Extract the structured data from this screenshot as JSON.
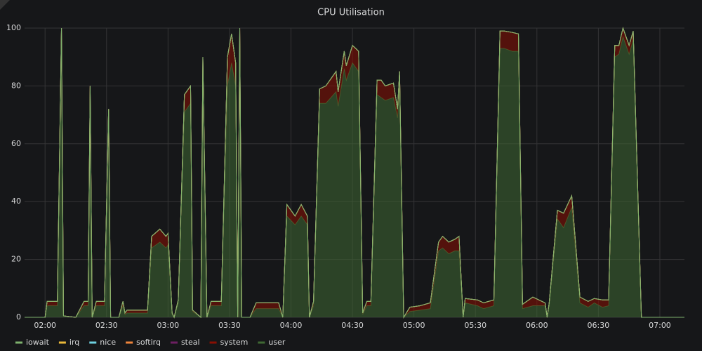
{
  "chart_data": {
    "type": "stacked-area",
    "title": "CPU Utilisation",
    "x": [
      "01:50",
      "02:00",
      "02:01",
      "02:06",
      "02:08",
      "02:09",
      "02:15",
      "02:19",
      "02:21",
      "02:22",
      "02:23",
      "02:25",
      "02:29",
      "02:31",
      "02:32",
      "02:36",
      "02:38",
      "02:39",
      "02:40",
      "02:50",
      "02:52",
      "02:56",
      "02:59",
      "03:00",
      "03:02",
      "03:03",
      "03:05",
      "03:08",
      "03:11",
      "03:12",
      "03:16",
      "03:17",
      "03:19",
      "03:21",
      "03:26",
      "03:29",
      "03:31",
      "03:33",
      "03:34",
      "03:35",
      "03:36",
      "03:40",
      "03:43",
      "03:54",
      "03:56",
      "03:58",
      "04:02",
      "04:05",
      "04:08",
      "04:09",
      "04:11",
      "04:14",
      "04:17",
      "04:22",
      "04:23",
      "04:26",
      "04:27",
      "04:30",
      "04:33",
      "04:35",
      "04:37",
      "04:39",
      "04:42",
      "04:44",
      "04:46",
      "04:50",
      "04:52",
      "04:53",
      "04:55",
      "04:58",
      "05:03",
      "05:08",
      "05:12",
      "05:14",
      "05:17",
      "05:20",
      "05:22",
      "05:24",
      "05:25",
      "05:31",
      "05:34",
      "05:39",
      "05:42",
      "05:44",
      "05:48",
      "05:51",
      "05:53",
      "05:58",
      "06:01",
      "06:04",
      "06:05",
      "06:06",
      "06:10",
      "06:13",
      "06:17",
      "06:21",
      "06:25",
      "06:28",
      "06:32",
      "06:35",
      "06:38",
      "06:40",
      "06:42",
      "06:45",
      "06:47",
      "06:51",
      "07:12"
    ],
    "xlim": [
      "01:50",
      "07:12"
    ],
    "xticks": [
      "02:00",
      "02:30",
      "03:00",
      "03:30",
      "04:00",
      "04:30",
      "05:00",
      "05:30",
      "06:00",
      "06:30",
      "07:00"
    ],
    "ylim": [
      0,
      100
    ],
    "yticks": [
      0,
      20,
      40,
      60,
      80,
      100
    ],
    "grid": true,
    "legend": "bottom-left",
    "series": [
      {
        "name": "iowait",
        "color": "#7eb26d",
        "values": [
          0,
          0,
          0,
          0,
          0,
          0,
          0,
          0,
          0,
          0,
          0,
          0,
          0,
          0,
          0,
          0,
          0,
          0,
          0,
          0,
          0,
          0,
          0,
          0,
          0,
          0,
          0,
          0,
          0,
          0,
          0,
          0,
          0,
          0,
          0,
          0,
          0,
          0,
          0,
          0,
          0,
          0,
          0,
          0,
          0,
          0,
          0,
          0,
          0,
          0,
          0,
          0,
          0,
          0,
          0,
          0,
          0,
          0,
          0,
          0,
          0,
          0,
          0,
          0,
          0,
          0,
          0,
          0,
          0,
          0,
          0,
          0,
          0,
          0,
          0,
          0,
          0,
          0,
          0,
          0,
          0,
          0,
          0,
          0,
          0,
          0,
          0,
          0,
          0,
          0,
          0,
          0,
          0,
          0,
          0,
          0,
          0,
          0,
          0,
          0,
          0,
          0,
          0,
          0,
          0,
          0,
          0
        ]
      },
      {
        "name": "irq",
        "color": "#eab839",
        "values": [
          0,
          0,
          0,
          0,
          0,
          0,
          0,
          0,
          0,
          0,
          0,
          0,
          0,
          0,
          0,
          0,
          0,
          0,
          0,
          0,
          0,
          0,
          0,
          0,
          0,
          0,
          0,
          0,
          0,
          0,
          0,
          0,
          0,
          0,
          0,
          0,
          0,
          0,
          0,
          0,
          0,
          0,
          0,
          0,
          0,
          0,
          0,
          0,
          0,
          0,
          0,
          0,
          0,
          0,
          0,
          0,
          0,
          0,
          0,
          0,
          0,
          0,
          0,
          0,
          0,
          0,
          0,
          0,
          0,
          0,
          0,
          0,
          0,
          0,
          0,
          0,
          0,
          0,
          0,
          0,
          0,
          0,
          0,
          0,
          0,
          0,
          0,
          0,
          0,
          0,
          0,
          0,
          0,
          0,
          0,
          0,
          0,
          0,
          0,
          0,
          0,
          0,
          0,
          0,
          0,
          0,
          0
        ]
      },
      {
        "name": "nice",
        "color": "#6ed0e0",
        "values": [
          0,
          0,
          0,
          0,
          0,
          0,
          0,
          0,
          0,
          0,
          0,
          0,
          0,
          0,
          0,
          0,
          0,
          0,
          0,
          0,
          0,
          0,
          0,
          0,
          0,
          0,
          0,
          0,
          0,
          0,
          0,
          0,
          0,
          0,
          0,
          0,
          0,
          0,
          0,
          0,
          0,
          0,
          0,
          0,
          0,
          0,
          0,
          0,
          0,
          0,
          0,
          0,
          0,
          0,
          0,
          0,
          0,
          0,
          0,
          0,
          0,
          0,
          0,
          0,
          0,
          0,
          0,
          0,
          0,
          0,
          0,
          0,
          0,
          0,
          0,
          0,
          0,
          0,
          0,
          0,
          0,
          0,
          0,
          0,
          0,
          0,
          0,
          0,
          0,
          0,
          0,
          0,
          0,
          0,
          0,
          0,
          0,
          0,
          0,
          0,
          0,
          0,
          0,
          0,
          0,
          0,
          0
        ]
      },
      {
        "name": "softirq",
        "color": "#ef843c",
        "values": [
          0,
          0,
          0,
          0,
          0,
          0,
          0,
          0,
          0,
          0,
          0,
          0,
          0,
          0,
          0,
          0,
          0,
          0,
          0,
          0,
          0,
          0,
          0,
          0,
          0,
          0,
          0,
          0,
          0,
          0,
          0,
          0,
          0,
          0,
          0,
          0,
          0,
          0,
          0,
          0,
          0,
          0,
          0,
          0,
          0,
          0,
          0,
          0,
          0,
          0,
          0,
          0,
          0,
          0,
          0,
          0,
          0,
          0,
          0,
          0,
          0,
          0,
          0,
          0,
          0,
          0,
          0,
          0,
          0,
          0,
          0,
          0,
          0,
          0,
          0,
          0,
          0,
          0,
          0,
          0,
          0,
          0,
          0,
          0,
          0,
          0,
          0,
          0,
          0,
          0,
          0,
          0,
          0,
          0,
          0,
          0,
          0,
          0,
          0,
          0,
          0,
          0,
          0,
          0,
          0,
          0,
          0
        ]
      },
      {
        "name": "steal",
        "color": "#6d1f62",
        "values": [
          0,
          0,
          0,
          0,
          0,
          0,
          0,
          0,
          0,
          0,
          0,
          0,
          0,
          0,
          0,
          0,
          0,
          0,
          0,
          0,
          0,
          0,
          0,
          0,
          0,
          0,
          0,
          0,
          0,
          0,
          0,
          0,
          0,
          0,
          0,
          0,
          0,
          0,
          0,
          0,
          0,
          0,
          0,
          0,
          0,
          0,
          0,
          0,
          0,
          0,
          0,
          0,
          0,
          0,
          0,
          0,
          0,
          0,
          0,
          0,
          0,
          0,
          0,
          0,
          0,
          0,
          0,
          0,
          0,
          0,
          0,
          0,
          0,
          0,
          0,
          0,
          0,
          0,
          0,
          0,
          0,
          0,
          0,
          0,
          0,
          0,
          0,
          0,
          0,
          0,
          0,
          0,
          0,
          0,
          0,
          0,
          0,
          0,
          0,
          0,
          0,
          0,
          0,
          0,
          0,
          0,
          0
        ]
      },
      {
        "name": "system",
        "color": "#890f02",
        "values": [
          0,
          0,
          1.5,
          1.5,
          5,
          0,
          0,
          1.5,
          1.5,
          5,
          0,
          1.5,
          1.5,
          4,
          0,
          0,
          1.5,
          0.5,
          1,
          1,
          4,
          4.5,
          4,
          4,
          0.5,
          0,
          1,
          6,
          6,
          0.5,
          0,
          5,
          0,
          1.5,
          1.5,
          10,
          10,
          8,
          0,
          5,
          0,
          0,
          2,
          2,
          0,
          4,
          3,
          4,
          3,
          0,
          1.5,
          5,
          6,
          7,
          5,
          6,
          5,
          6,
          7,
          0.5,
          1.5,
          1.5,
          5,
          6,
          5,
          5,
          3,
          5,
          0,
          1.5,
          1.5,
          2,
          3,
          4,
          4,
          4,
          5,
          0,
          1.5,
          2,
          2,
          2,
          6,
          6,
          6.5,
          6,
          1.5,
          3,
          2,
          1,
          0,
          1,
          3,
          5,
          4,
          2,
          2,
          1.5,
          2.5,
          2,
          4,
          3,
          3,
          3,
          3,
          0,
          0
        ]
      },
      {
        "name": "user",
        "color": "#3f6833",
        "values": [
          0,
          0,
          4,
          4,
          95,
          0.5,
          0,
          4,
          4,
          75,
          0,
          4,
          4,
          68,
          0,
          0,
          4,
          1,
          1.5,
          1.5,
          24,
          26,
          24,
          25,
          1,
          0,
          5,
          71,
          74,
          2,
          0,
          85,
          0,
          4,
          4,
          80,
          88,
          80,
          0,
          95,
          0,
          0,
          3,
          3,
          0,
          35,
          32,
          35,
          32,
          0,
          4,
          74,
          74,
          78,
          73,
          86,
          82,
          88,
          85,
          1,
          4,
          4,
          77,
          76,
          75,
          76,
          69,
          80,
          0,
          2,
          2.5,
          3,
          23,
          24,
          22,
          23,
          23,
          0,
          5,
          4,
          3,
          4,
          93,
          93,
          92,
          92,
          3,
          4,
          4,
          4,
          0,
          4,
          34,
          31,
          38,
          5,
          3.5,
          5,
          3.5,
          4,
          90,
          91,
          97,
          91,
          96,
          0,
          0
        ]
      }
    ]
  }
}
